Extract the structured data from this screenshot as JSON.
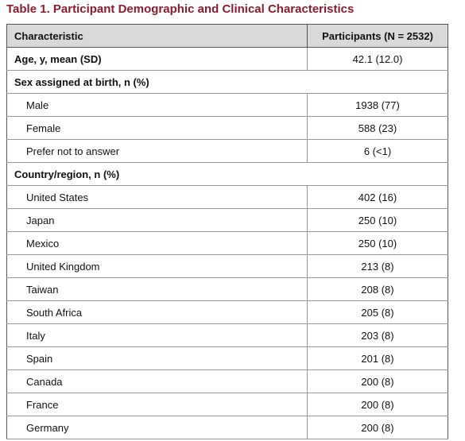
{
  "title": "Table 1. Participant Demographic and Clinical Characteristics",
  "table": {
    "header": [
      "Characteristic",
      "Participants (N = 2532)"
    ],
    "body": [
      {
        "label": "Age, y, mean (SD)",
        "value": "42.1 (12.0)"
      },
      {
        "label": "Sex assigned at birth, n (%)",
        "items": [
          {
            "label": "Male",
            "value": "1938 (77)"
          },
          {
            "label": "Female",
            "value": "588 (23)"
          },
          {
            "label": "Prefer not to answer",
            "value": "6 (<1)"
          }
        ]
      },
      {
        "label": "Country/region, n (%)",
        "items": [
          {
            "label": "United States",
            "value": "402 (16)"
          },
          {
            "label": "Japan",
            "value": "250 (10)"
          },
          {
            "label": "Mexico",
            "value": "250 (10)"
          },
          {
            "label": "United Kingdom",
            "value": "213 (8)"
          },
          {
            "label": "Taiwan",
            "value": "208 (8)"
          },
          {
            "label": "South Africa",
            "value": "205 (8)"
          },
          {
            "label": "Italy",
            "value": "203 (8)"
          },
          {
            "label": "Spain",
            "value": "201 (8)"
          },
          {
            "label": "Canada",
            "value": "200 (8)"
          },
          {
            "label": "France",
            "value": "200 (8)"
          },
          {
            "label": "Germany",
            "value": "200 (8)"
          }
        ]
      }
    ]
  }
}
